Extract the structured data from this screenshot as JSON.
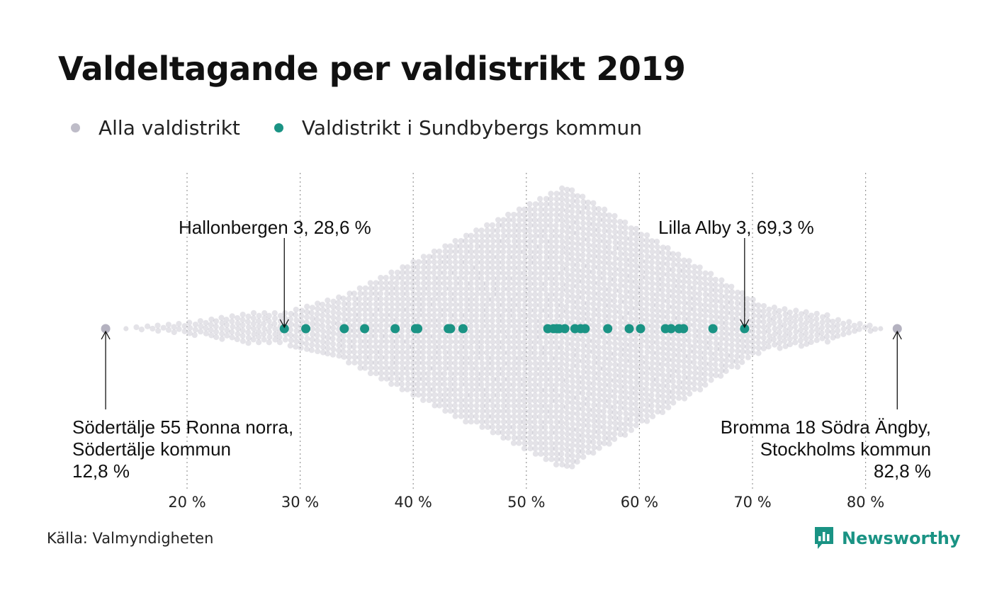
{
  "title": "Valdeltagande per valdistrikt 2019",
  "legend": [
    {
      "label": "Alla valdistrikt",
      "color": "#bebcc8"
    },
    {
      "label": "Valdistrikt i Sundbybergs kommun",
      "color": "#1a9384"
    }
  ],
  "annotations": {
    "hallonbergen": "Hallonbergen 3, 28,6 %",
    "lilla_alby": "Lilla Alby 3, 69,3 %",
    "sodertalje": [
      "Södertälje 55 Ronna norra,",
      "Södertälje kommun",
      "12,8 %"
    ],
    "bromma": [
      "Bromma 18 Södra Ängby,",
      "Stockholms kommun",
      "82,8 %"
    ]
  },
  "source": "Källa: Valmyndigheten",
  "brand": {
    "name": "Newsworthy",
    "icon": "bar-chart-bubble-icon",
    "color": "#1a9384"
  },
  "chart_data": {
    "type": "scatter",
    "subtype": "beeswarm",
    "xlim": [
      12,
      84
    ],
    "xticks": [
      20,
      30,
      40,
      50,
      60,
      70,
      80
    ],
    "xtick_labels": [
      "20 %",
      "30 %",
      "40 %",
      "50 %",
      "60 %",
      "70 %",
      "80 %"
    ],
    "grid": "vertical-dotted",
    "series": [
      {
        "name": "Alla valdistrikt",
        "color": "#bebcc8",
        "distribution": "dense swarm of all voting districts, mode near 53–54 %",
        "highlighted": [
          {
            "label": "Södertälje 55 Ronna norra, Södertälje kommun",
            "value": 12.8
          },
          {
            "label": "Bromma 18 Södra Ängby, Stockholms kommun",
            "value": 82.8
          }
        ]
      },
      {
        "name": "Valdistrikt i Sundbybergs kommun",
        "color": "#1a9384",
        "values": [
          28.6,
          30.5,
          33.9,
          35.7,
          38.4,
          40.2,
          40.4,
          43.1,
          43.3,
          44.4,
          51.9,
          52.4,
          52.7,
          52.9,
          53.4,
          54.3,
          54.8,
          55.2,
          57.2,
          59.1,
          60.1,
          62.3,
          62.8,
          63.5,
          63.9,
          66.5,
          69.3
        ]
      }
    ]
  }
}
